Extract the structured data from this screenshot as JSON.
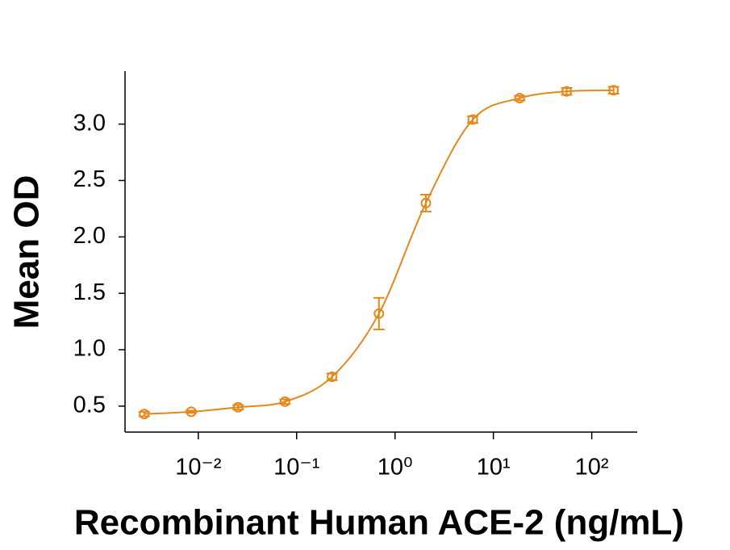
{
  "chart_data": {
    "type": "scatter",
    "x_label": "Recombinant Human ACE-2 (ng/mL)",
    "y_label": "Mean OD",
    "x_scale": "log",
    "xlim": [
      0.0018,
      290
    ],
    "ylim": [
      0.27,
      3.47
    ],
    "xticks": [
      {
        "value": 0.01,
        "label": "10⁻²"
      },
      {
        "value": 0.1,
        "label": "10⁻¹"
      },
      {
        "value": 1,
        "label": "10⁰"
      },
      {
        "value": 10,
        "label": "10¹"
      },
      {
        "value": 100,
        "label": "10²"
      }
    ],
    "yticks": [
      0.5,
      {
        "value": 1,
        "label": "1.0"
      },
      1.5,
      {
        "value": 2,
        "label": "2.0"
      },
      2.5,
      {
        "value": 3,
        "label": "3.0"
      }
    ],
    "series": [
      {
        "color": "#e5881b",
        "x": [
          0.00282,
          0.00847,
          0.0254,
          0.0762,
          0.229,
          0.686,
          2.06,
          6.17,
          18.5,
          55.6,
          166.7
        ],
        "values": [
          0.43,
          0.45,
          0.49,
          0.54,
          0.76,
          1.32,
          2.3,
          3.04,
          3.23,
          3.29,
          3.3
        ],
        "errors": [
          0.02,
          0.01,
          0.02,
          0.02,
          0.03,
          0.14,
          0.075,
          0.03,
          0.02,
          0.03,
          0.03
        ]
      }
    ]
  }
}
